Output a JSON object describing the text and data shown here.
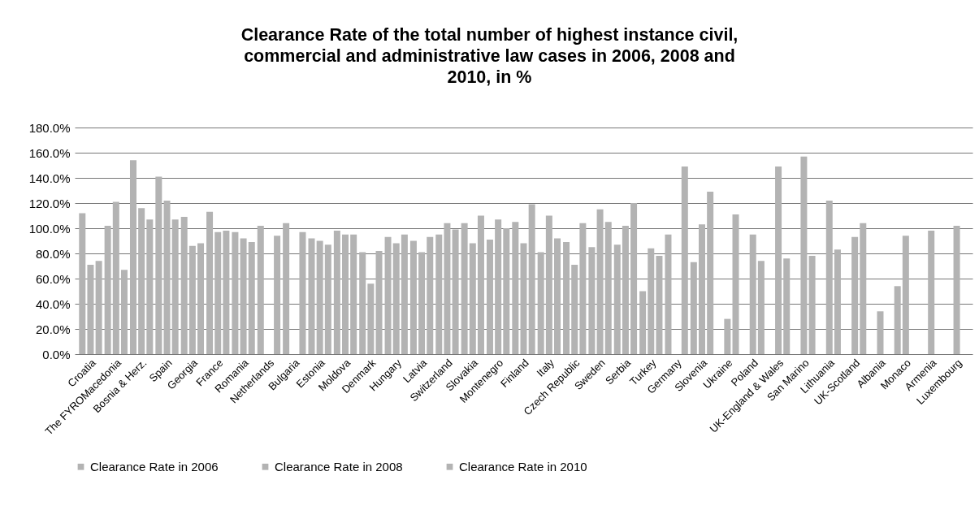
{
  "chart_data": {
    "type": "bar",
    "title": "Clearance Rate of the total number of highest instance civil, commercial and administrative law cases in 2006, 2008 and 2010, in %",
    "categories": [
      "Croatia",
      "The FYROMacedonia",
      "Bosnia & Herz.",
      "Spain",
      "Georgia",
      "France",
      "Romania",
      "Netherlands",
      "Bulgaria",
      "Estonia",
      "Moldova",
      "Denmark",
      "Hungary",
      "Latvia",
      "Switzerland",
      "Slovakia",
      "Montenegro",
      "Finland",
      "Italy",
      "Czech Republic",
      "Sweden",
      "Serbia",
      "Turkey",
      "Germany",
      "Slovenia",
      "Ukraine",
      "Poland",
      "UK-England & Wales",
      "San Marino",
      "Lithuania",
      "UK-Scotland",
      "Albania",
      "Monaco",
      "Armenia",
      "Luxembourg"
    ],
    "series": [
      {
        "name": "Clearance Rate in 2006",
        "color": "#b3b3b3",
        "values": [
          112,
          102,
          154,
          141,
          109,
          113,
          97,
          102,
          104,
          92,
          98,
          81,
          93,
          90,
          95,
          104,
          91,
          105,
          81,
          89,
          85,
          87,
          50,
          95,
          73,
          null,
          null,
          null,
          null,
          null,
          null,
          null,
          54,
          null,
          null
        ]
      },
      {
        "name": "Clearance Rate in 2008",
        "color": "#b3b3b3",
        "values": [
          71,
          121,
          116,
          122,
          86,
          97,
          92,
          null,
          null,
          90,
          95,
          56,
          88,
          81,
          104,
          88,
          107,
          88,
          110,
          71,
          115,
          102,
          84,
          null,
          103,
          28,
          95,
          149,
          157,
          122,
          93,
          34,
          94,
          98,
          102
        ]
      },
      {
        "name": "Clearance Rate in 2010",
        "color": "#b3b3b3",
        "values": [
          74,
          67,
          107,
          107,
          88,
          98,
          89,
          94,
          97,
          87,
          95,
          82,
          95,
          93,
          99,
          110,
          100,
          119,
          92,
          104,
          105,
          120,
          78,
          149,
          129,
          111,
          74,
          76,
          78,
          83,
          104,
          null,
          null,
          null,
          null
        ]
      }
    ],
    "ylim": [
      0,
      180
    ],
    "yticks": [
      {
        "value": 0,
        "label": "0.0%"
      },
      {
        "value": 20,
        "label": "20.0%"
      },
      {
        "value": 40,
        "label": "40.0%"
      },
      {
        "value": 60,
        "label": "60.0%"
      },
      {
        "value": 80,
        "label": "80.0%"
      },
      {
        "value": 100,
        "label": "100.0%"
      },
      {
        "value": 120,
        "label": "120.0%"
      },
      {
        "value": 140,
        "label": "140.0%"
      },
      {
        "value": 160,
        "label": "160.0%"
      },
      {
        "value": 180,
        "label": "180.0%"
      }
    ],
    "grid": "y",
    "legend": "bottom"
  }
}
